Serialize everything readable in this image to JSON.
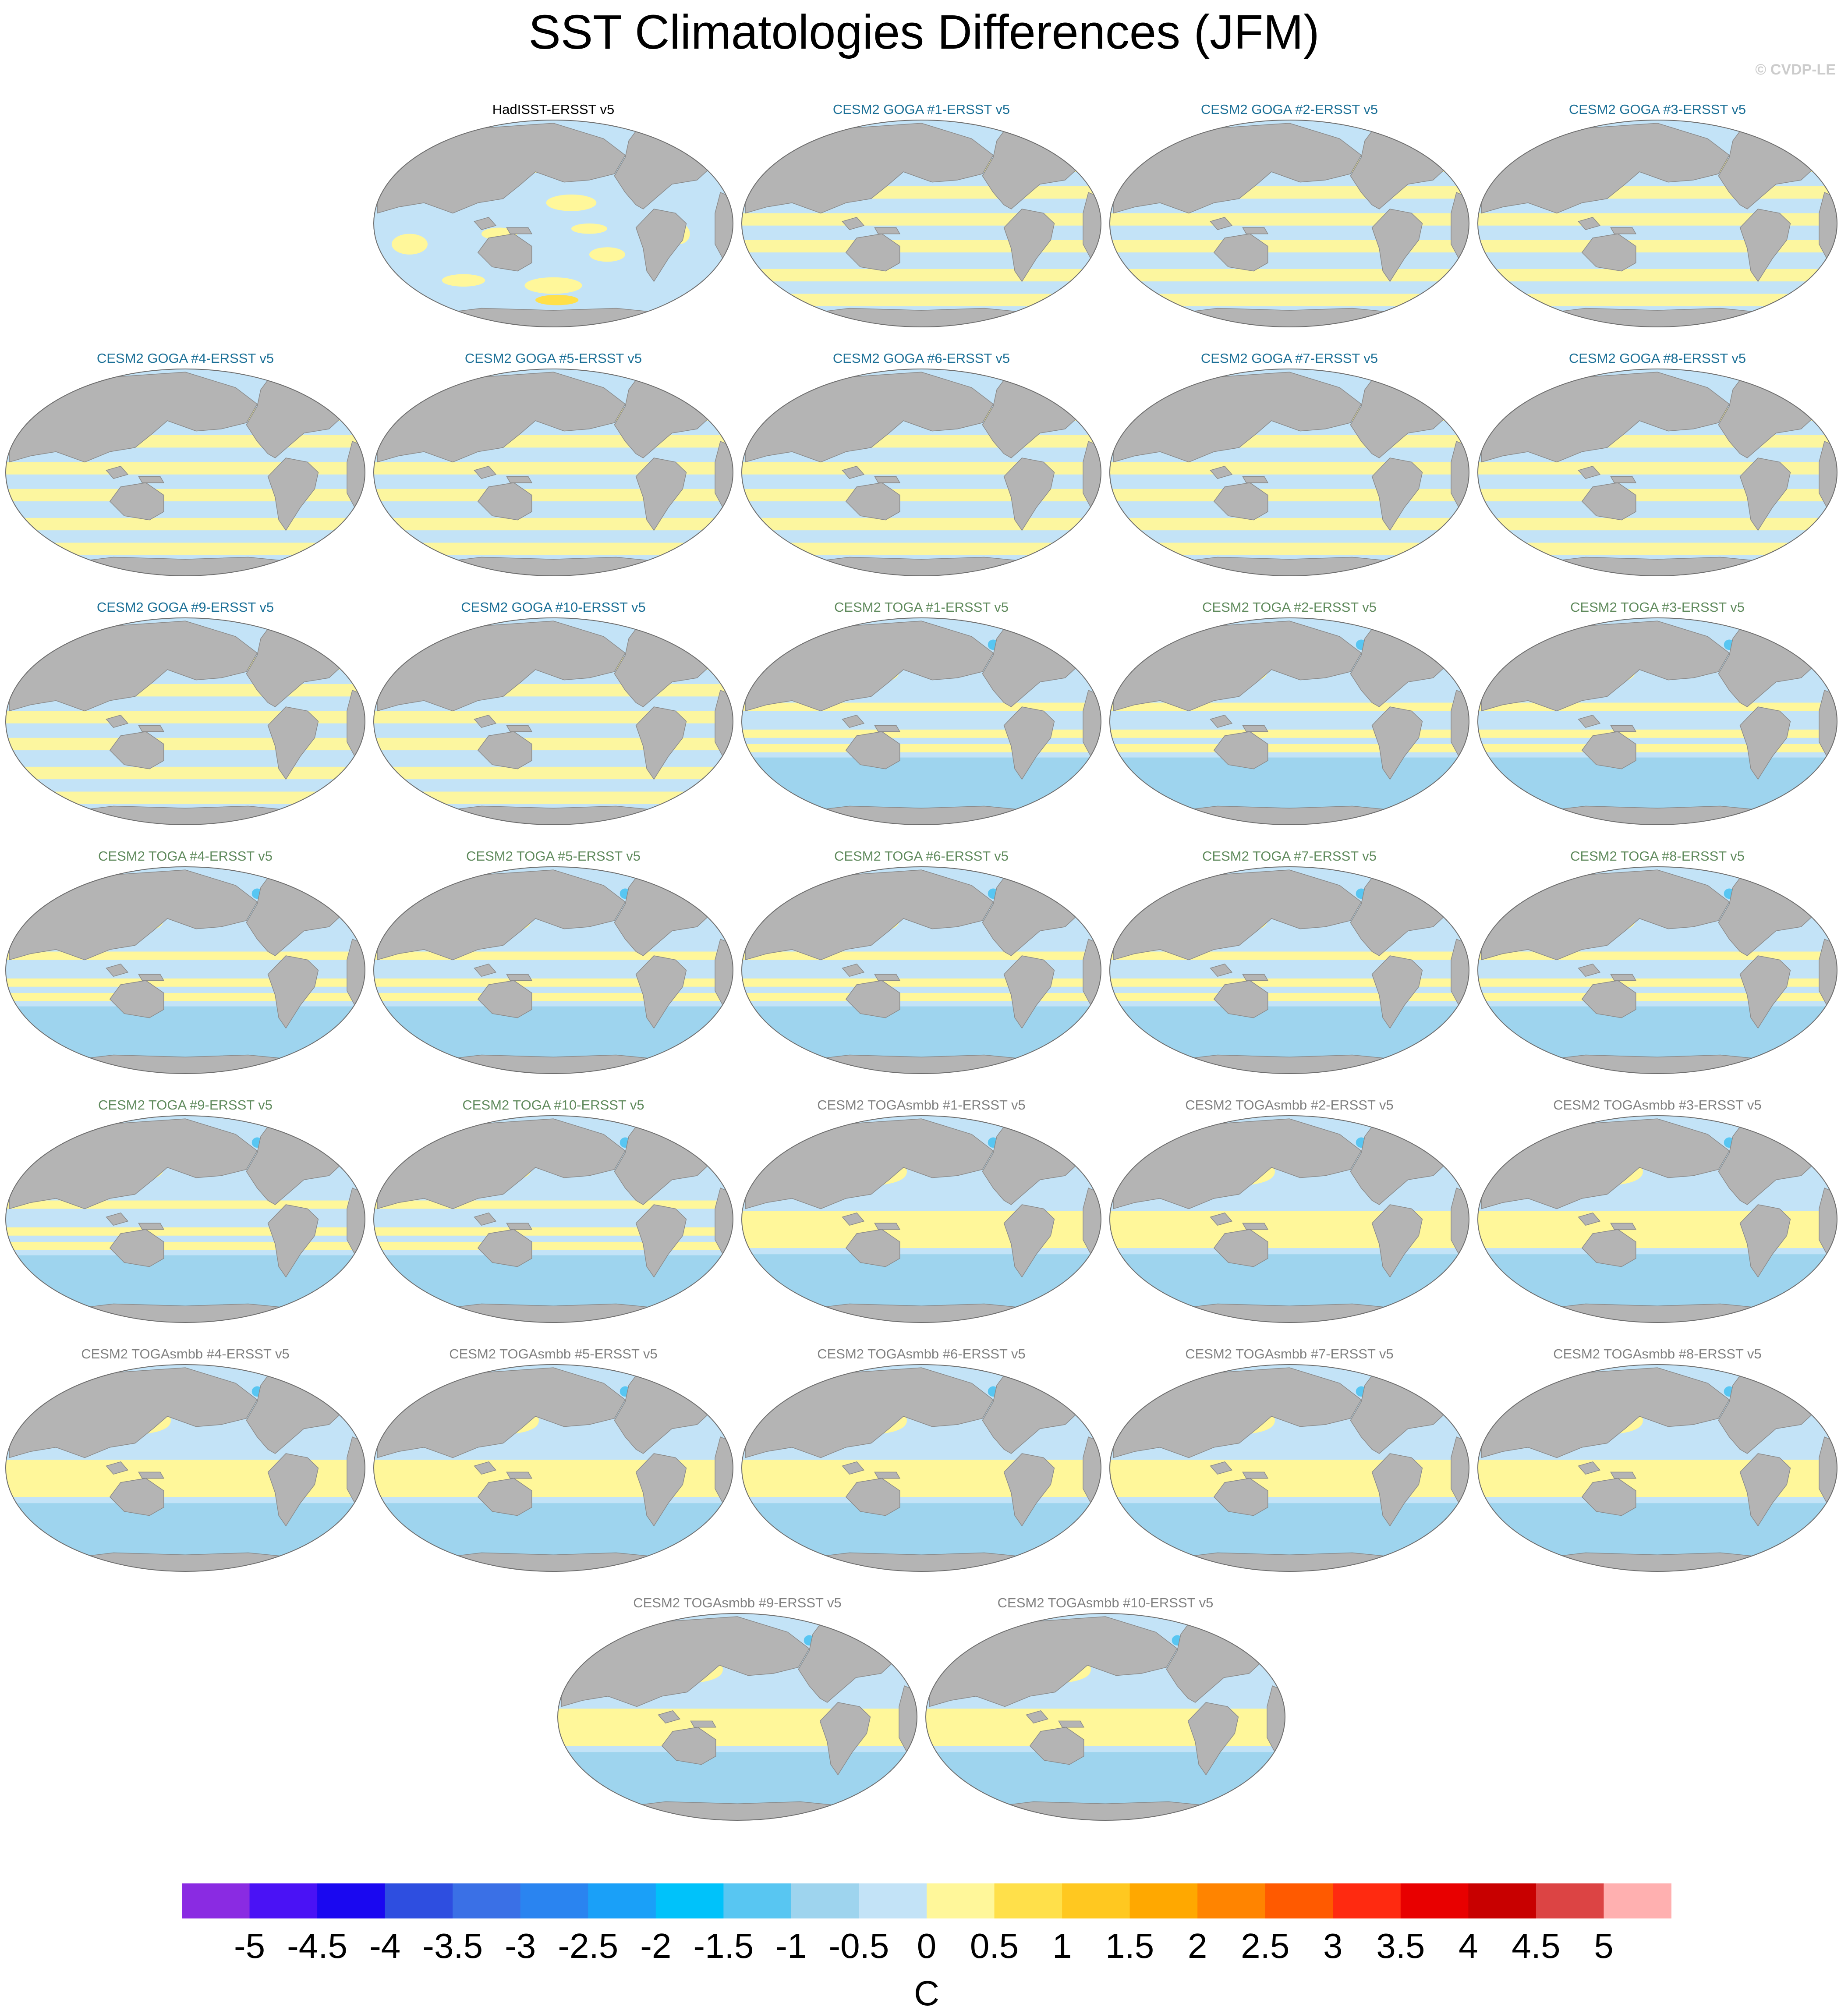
{
  "title": "SST Climatologies Differences (JFM)",
  "credit": "© CVDP-LE",
  "colors": {
    "obs_title": "#000000",
    "goga_title": "#1a6f96",
    "toga_title": "#5f8a5c",
    "togasmbb_title": "#808080",
    "land": "#b4b4b4",
    "ocean_base": "#c3e3f7"
  },
  "chart_data": {
    "type": "heatmap",
    "title": "SST Climatologies Differences (JFM)",
    "projection": "robinson",
    "panels": [
      {
        "title": "HadISST-ERSST v5",
        "group": "obs"
      },
      {
        "title": "CESM2 GOGA #1-ERSST v5",
        "group": "goga"
      },
      {
        "title": "CESM2 GOGA #2-ERSST v5",
        "group": "goga"
      },
      {
        "title": "CESM2 GOGA #3-ERSST v5",
        "group": "goga"
      },
      {
        "title": "CESM2 GOGA #4-ERSST v5",
        "group": "goga"
      },
      {
        "title": "CESM2 GOGA #5-ERSST v5",
        "group": "goga"
      },
      {
        "title": "CESM2 GOGA #6-ERSST v5",
        "group": "goga"
      },
      {
        "title": "CESM2 GOGA #7-ERSST v5",
        "group": "goga"
      },
      {
        "title": "CESM2 GOGA #8-ERSST v5",
        "group": "goga"
      },
      {
        "title": "CESM2 GOGA #9-ERSST v5",
        "group": "goga"
      },
      {
        "title": "CESM2 GOGA #10-ERSST v5",
        "group": "goga"
      },
      {
        "title": "CESM2 TOGA #1-ERSST v5",
        "group": "toga"
      },
      {
        "title": "CESM2 TOGA #2-ERSST v5",
        "group": "toga"
      },
      {
        "title": "CESM2 TOGA #3-ERSST v5",
        "group": "toga"
      },
      {
        "title": "CESM2 TOGA #4-ERSST v5",
        "group": "toga"
      },
      {
        "title": "CESM2 TOGA #5-ERSST v5",
        "group": "toga"
      },
      {
        "title": "CESM2 TOGA #6-ERSST v5",
        "group": "toga"
      },
      {
        "title": "CESM2 TOGA #7-ERSST v5",
        "group": "toga"
      },
      {
        "title": "CESM2 TOGA #8-ERSST v5",
        "group": "toga"
      },
      {
        "title": "CESM2 TOGA #9-ERSST v5",
        "group": "toga"
      },
      {
        "title": "CESM2 TOGA #10-ERSST v5",
        "group": "toga"
      },
      {
        "title": "CESM2 TOGAsmbb #1-ERSST v5",
        "group": "togasmbb"
      },
      {
        "title": "CESM2 TOGAsmbb #2-ERSST v5",
        "group": "togasmbb"
      },
      {
        "title": "CESM2 TOGAsmbb #3-ERSST v5",
        "group": "togasmbb"
      },
      {
        "title": "CESM2 TOGAsmbb #4-ERSST v5",
        "group": "togasmbb"
      },
      {
        "title": "CESM2 TOGAsmbb #5-ERSST v5",
        "group": "togasmbb"
      },
      {
        "title": "CESM2 TOGAsmbb #6-ERSST v5",
        "group": "togasmbb"
      },
      {
        "title": "CESM2 TOGAsmbb #7-ERSST v5",
        "group": "togasmbb"
      },
      {
        "title": "CESM2 TOGAsmbb #8-ERSST v5",
        "group": "togasmbb"
      },
      {
        "title": "CESM2 TOGAsmbb #9-ERSST v5",
        "group": "togasmbb"
      },
      {
        "title": "CESM2 TOGAsmbb #10-ERSST v5",
        "group": "togasmbb"
      }
    ],
    "colorbar": {
      "label": "C",
      "tick_labels": [
        "-5",
        "-4.5",
        "-4",
        "-3.5",
        "-3",
        "-2.5",
        "-2",
        "-1.5",
        "-1",
        "-0.5",
        "0",
        "0.5",
        "1",
        "1.5",
        "2",
        "2.5",
        "3",
        "3.5",
        "4",
        "4.5",
        "5"
      ],
      "colors": [
        "#8a2be2",
        "#4a12f5",
        "#1a08f0",
        "#2e4ee0",
        "#3a70e6",
        "#2a84f0",
        "#1aa0f8",
        "#00c2fa",
        "#58c6f2",
        "#9ed4ee",
        "#c3e3f7",
        "#fff79a",
        "#ffe04a",
        "#ffc820",
        "#ffa800",
        "#ff8400",
        "#ff5a00",
        "#ff2a10",
        "#e80000",
        "#c80000",
        "#dc4444",
        "#ffb0b0"
      ]
    }
  }
}
